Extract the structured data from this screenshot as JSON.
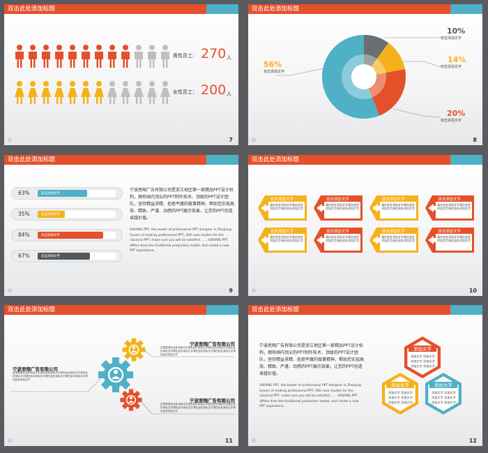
{
  "slides": {
    "s7": {
      "header": "双击此处添加标题",
      "number": "7",
      "male_label": "男性员工：",
      "male_value": "270",
      "male_unit": "人",
      "female_label": "女性员工：",
      "female_value": "200",
      "female_unit": "人"
    },
    "s8": {
      "header": "双击此处添加标题",
      "number": "8",
      "callouts": [
        {
          "pct": "56%",
          "text": "双击添加文字"
        },
        {
          "pct": "10%",
          "text": "双击添加文字"
        },
        {
          "pct": "14%",
          "text": "双击添加文字"
        },
        {
          "pct": "20%",
          "text": "双击添加文字"
        }
      ]
    },
    "s9": {
      "header": "双击此处添加标题",
      "number": "9",
      "bars": [
        {
          "pct": "63%",
          "label": "双击添加文字",
          "value": 0.63,
          "color": "#4fb0c6"
        },
        {
          "pct": "35%",
          "label": "双击添加文字",
          "value": 0.35,
          "color": "#f5b11a"
        },
        {
          "pct": "84%",
          "label": "双击添加文字",
          "value": 0.84,
          "color": "#e4502a"
        },
        {
          "pct": "67%",
          "label": "双击添加文字",
          "value": 0.67,
          "color": "#505a5e"
        }
      ],
      "para1": "宁波思翔广告有限公司是浙江地区第一家精品PPT设计机构，拥有国内顶尖的PPT制作技术、顶级的PPT设计团队，坚持精益求精、拒绝平庸的做事精神，帮助您实现高效、精致、严谨、动感的PPT展示效果，让您的PPT创造卓越价值。",
      "para2": "SIXIANG PPT, the leader of professional PPT designer in Zhejiang. 5years of making professional PPT, 500 case studies for the classical PPT, make sure you will be satisfied. ……SIXIANG PPT differs from the traditional production model, and create a new PPT experience."
    },
    "s10": {
      "header": "双击此处添加标题",
      "number": "10",
      "card_title": "双击添加文字",
      "card_text": "请在此处添加文字请在此处添加文字请在此处添加文字"
    },
    "s11": {
      "header": "双击此处添加标题",
      "number": "11",
      "company": "宁波思翔广告有限公司",
      "text": "这里是请在此处添加文字请在此处添加文字请在此处添加文字请在此处添加文字请在此处添加文字请在此处添加文字请在此处添加文字请在此处添加文字"
    },
    "s12": {
      "header": "双击此处添加标题",
      "number": "12",
      "para1": "宁波思翔广告有限公司是浙江地区第一家精品PPT设计机构，拥有国内顶尖的PPT制作技术、顶级的PPT设计团队，坚持精益求精、拒绝平庸的做事精神，帮助您实现高效、精致、严谨、动感的PPT展示效果，让您的PPT创造卓越价值。",
      "para2": "SIXIANG PPT, the leader of professional PPT designer in Zhejiang. 5years of making professional PPT, 500 case studies for the classical PPT, make sure you will be satisfied. ……SIXIANG PPT differs from the traditional production model, and create a new PPT experience.",
      "hex_title": "添加文字",
      "hex_item": "添加文字"
    }
  },
  "colors": {
    "red": "#e4502a",
    "blue": "#4fb0c6",
    "yellow": "#f5b11a",
    "gray": "#505a5e",
    "light": "#bfbfbf"
  }
}
